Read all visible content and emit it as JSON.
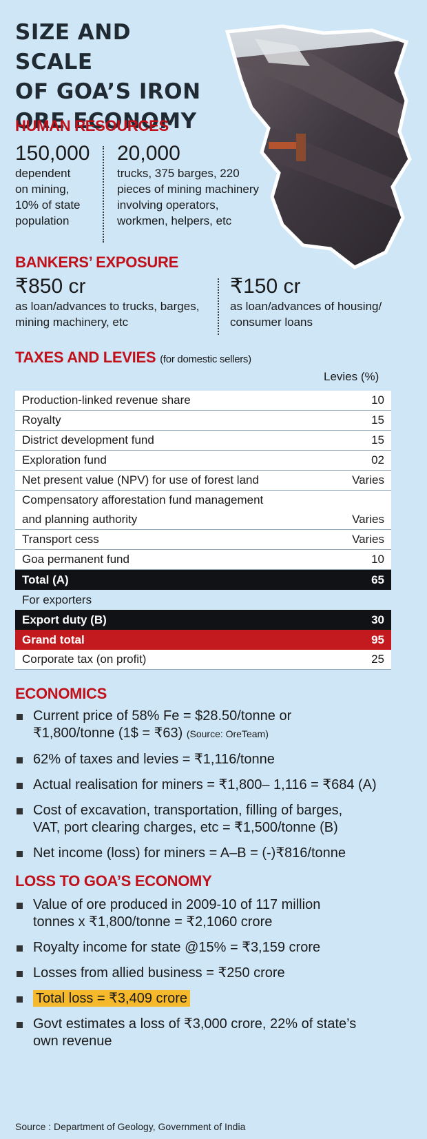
{
  "title_lines": [
    "SIZE AND SCALE",
    "OF GOA’S IRON",
    "ORE ECONOMY"
  ],
  "human_resources": {
    "heading": "HUMAN RESOURCES",
    "left": {
      "value": "150,000",
      "desc_lines": [
        "dependent",
        "on mining,",
        "10% of state",
        "population"
      ]
    },
    "right": {
      "value": "20,000",
      "desc_lines": [
        "trucks, 375 barges, 220",
        "pieces of mining machinery",
        "involving operators,",
        "workmen, helpers, etc"
      ]
    }
  },
  "bankers_exposure": {
    "heading": "BANKERS’ EXPOSURE",
    "left": {
      "value": "₹850 cr",
      "desc_lines": [
        "as loan/advances to trucks, barges,",
        "mining machinery, etc"
      ]
    },
    "right": {
      "value": "₹150 cr",
      "desc_lines": [
        "as loan/advances of housing/",
        "consumer loans"
      ]
    }
  },
  "taxes": {
    "heading": "TAXES AND LEVIES",
    "subheading": "(for domestic sellers)",
    "column_header": "Levies (%)",
    "rows": [
      {
        "label": "Production-linked revenue share",
        "value": "10"
      },
      {
        "label": "Royalty",
        "value": "15"
      },
      {
        "label": "District development fund",
        "value": "15"
      },
      {
        "label": "Exploration fund",
        "value": "02"
      },
      {
        "label": "Net present value (NPV) for use of forest land",
        "value": "Varies"
      },
      {
        "label_lines": [
          "Compensatory afforestation fund management",
          "and planning authority"
        ],
        "value": "Varies"
      },
      {
        "label": "Transport cess",
        "value": "Varies"
      },
      {
        "label": "Goa permanent fund",
        "value": "10"
      }
    ],
    "total": {
      "label": "Total (A)",
      "value": "65"
    },
    "exporters_label": "For exporters",
    "export_duty": {
      "label": "Export duty (B)",
      "value": "30"
    },
    "grand_total": {
      "label": "Grand total",
      "value": "95"
    },
    "corporate_tax": {
      "label": "Corporate tax (on profit)",
      "value": "25"
    }
  },
  "economics": {
    "heading": "ECONOMICS",
    "items": [
      {
        "lines": [
          "Current price of 58% Fe = $28.50/tonne or",
          "₹1,800/tonne (1$ = ₹63)"
        ],
        "note": "(Source: OreTeam)"
      },
      {
        "lines": [
          "62% of taxes and levies = ₹1,116/tonne"
        ]
      },
      {
        "lines": [
          "Actual realisation for miners = ₹1,800– 1,116 = ₹684 (A)"
        ]
      },
      {
        "lines": [
          "Cost of excavation, transportation, filling of barges,",
          "VAT, port clearing charges, etc = ₹1,500/tonne (B)"
        ]
      },
      {
        "lines": [
          "Net income (loss) for miners = A–B = (-)₹816/tonne"
        ]
      }
    ]
  },
  "loss": {
    "heading": "LOSS TO GOA’S ECONOMY",
    "items": [
      {
        "lines": [
          "Value of ore produced in 2009-10 of 117 million",
          "tonnes x ₹1,800/tonne = ₹2,1060 crore"
        ]
      },
      {
        "lines": [
          "Royalty income for state @15% = ₹3,159 crore"
        ]
      },
      {
        "lines": [
          "Losses from allied business = ₹250 crore"
        ]
      },
      {
        "lines": [
          "Total loss = ₹3,409 crore"
        ],
        "highlight": true
      },
      {
        "lines": [
          "Govt estimates a loss of ₹3,000 crore, 22% of state’s",
          "own revenue"
        ]
      }
    ]
  },
  "source": "Source : Department of Geology, Government of India",
  "colors": {
    "background": "#cfe6f6",
    "heading_red": "#c0101a",
    "total_black": "#111216",
    "grand_red": "#c21a1f",
    "highlight": "#f6b92c"
  }
}
